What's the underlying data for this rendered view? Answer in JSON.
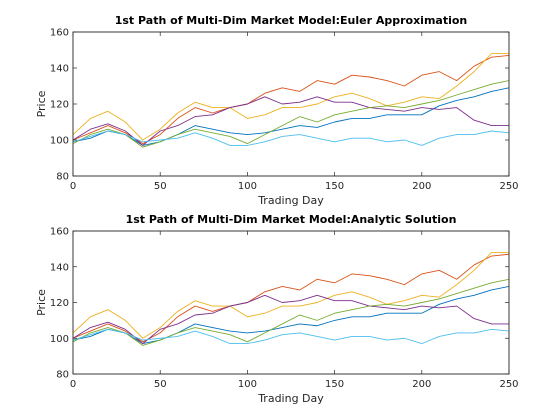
{
  "chart_data": [
    {
      "type": "line",
      "title": "1st Path of Multi-Dim Market Model:Euler Approximation",
      "xlabel": "Trading Day",
      "ylabel": "Price",
      "xlim": [
        0,
        250
      ],
      "ylim": [
        80,
        160
      ],
      "xticks": [
        "0",
        "50",
        "100",
        "150",
        "200",
        "250"
      ],
      "yticks": [
        "80",
        "100",
        "120",
        "140",
        "160"
      ],
      "grid": false,
      "series": [
        {
          "color": "#0072BD",
          "x": [
            0,
            10,
            20,
            30,
            40,
            50,
            60,
            70,
            80,
            90,
            100,
            110,
            120,
            130,
            140,
            150,
            160,
            170,
            180,
            190,
            200,
            210,
            220,
            230,
            240,
            250
          ],
          "values": [
            99,
            101,
            105,
            103,
            97,
            99,
            103,
            108,
            106,
            104,
            103,
            104,
            106,
            108,
            107,
            110,
            112,
            112,
            114,
            114,
            114,
            119,
            122,
            124,
            127,
            129
          ]
        },
        {
          "color": "#D95319",
          "x": [
            0,
            10,
            20,
            30,
            40,
            50,
            60,
            70,
            80,
            90,
            100,
            110,
            120,
            130,
            140,
            150,
            160,
            170,
            180,
            190,
            200,
            210,
            220,
            230,
            240,
            250
          ],
          "values": [
            100,
            104,
            108,
            104,
            98,
            103,
            112,
            118,
            115,
            118,
            120,
            126,
            129,
            127,
            133,
            131,
            136,
            135,
            133,
            130,
            136,
            138,
            133,
            141,
            146,
            147
          ]
        },
        {
          "color": "#EDB120",
          "x": [
            0,
            10,
            20,
            30,
            40,
            50,
            60,
            70,
            80,
            90,
            100,
            110,
            120,
            130,
            140,
            150,
            160,
            170,
            180,
            190,
            200,
            210,
            220,
            230,
            240,
            250
          ],
          "values": [
            103,
            112,
            116,
            110,
            100,
            106,
            115,
            121,
            118,
            118,
            112,
            114,
            118,
            118,
            120,
            124,
            126,
            123,
            119,
            121,
            124,
            123,
            130,
            138,
            148,
            148
          ]
        },
        {
          "color": "#7E2F8E",
          "x": [
            0,
            10,
            20,
            30,
            40,
            50,
            60,
            70,
            80,
            90,
            100,
            110,
            120,
            130,
            140,
            150,
            160,
            170,
            180,
            190,
            200,
            210,
            220,
            230,
            240,
            250
          ],
          "values": [
            100,
            106,
            109,
            105,
            97,
            105,
            108,
            113,
            114,
            118,
            120,
            124,
            120,
            121,
            124,
            121,
            121,
            118,
            117,
            116,
            118,
            117,
            118,
            111,
            108,
            108
          ]
        },
        {
          "color": "#77AC30",
          "x": [
            0,
            10,
            20,
            30,
            40,
            50,
            60,
            70,
            80,
            90,
            100,
            110,
            120,
            130,
            140,
            150,
            160,
            170,
            180,
            190,
            200,
            210,
            220,
            230,
            240,
            250
          ],
          "values": [
            98,
            103,
            106,
            103,
            96,
            99,
            103,
            106,
            104,
            102,
            98,
            103,
            108,
            113,
            110,
            114,
            116,
            118,
            119,
            118,
            120,
            122,
            125,
            128,
            131,
            133
          ]
        },
        {
          "color": "#4DBEEE",
          "x": [
            0,
            10,
            20,
            30,
            40,
            50,
            60,
            70,
            80,
            90,
            100,
            110,
            120,
            130,
            140,
            150,
            160,
            170,
            180,
            190,
            200,
            210,
            220,
            230,
            240,
            250
          ],
          "values": [
            99,
            102,
            105,
            103,
            99,
            100,
            101,
            104,
            101,
            97,
            97,
            99,
            102,
            103,
            101,
            99,
            101,
            101,
            99,
            100,
            97,
            101,
            103,
            103,
            105,
            104
          ]
        }
      ]
    },
    {
      "type": "line",
      "title": "1st Path of Multi-Dim Market Model:Analytic Solution",
      "xlabel": "Trading Day",
      "ylabel": "Price",
      "xlim": [
        0,
        250
      ],
      "ylim": [
        80,
        160
      ],
      "xticks": [
        "0",
        "50",
        "100",
        "150",
        "200",
        "250"
      ],
      "yticks": [
        "80",
        "100",
        "120",
        "140",
        "160"
      ],
      "grid": false,
      "series": [
        {
          "color": "#0072BD",
          "x": [
            0,
            10,
            20,
            30,
            40,
            50,
            60,
            70,
            80,
            90,
            100,
            110,
            120,
            130,
            140,
            150,
            160,
            170,
            180,
            190,
            200,
            210,
            220,
            230,
            240,
            250
          ],
          "values": [
            99,
            101,
            105,
            103,
            97,
            99,
            103,
            108,
            106,
            104,
            103,
            104,
            106,
            108,
            107,
            110,
            112,
            112,
            114,
            114,
            114,
            119,
            122,
            124,
            127,
            129
          ]
        },
        {
          "color": "#D95319",
          "x": [
            0,
            10,
            20,
            30,
            40,
            50,
            60,
            70,
            80,
            90,
            100,
            110,
            120,
            130,
            140,
            150,
            160,
            170,
            180,
            190,
            200,
            210,
            220,
            230,
            240,
            250
          ],
          "values": [
            100,
            104,
            108,
            104,
            98,
            103,
            112,
            118,
            115,
            118,
            120,
            126,
            129,
            127,
            133,
            131,
            136,
            135,
            133,
            130,
            136,
            138,
            133,
            141,
            146,
            147
          ]
        },
        {
          "color": "#EDB120",
          "x": [
            0,
            10,
            20,
            30,
            40,
            50,
            60,
            70,
            80,
            90,
            100,
            110,
            120,
            130,
            140,
            150,
            160,
            170,
            180,
            190,
            200,
            210,
            220,
            230,
            240,
            250
          ],
          "values": [
            103,
            112,
            116,
            110,
            100,
            106,
            115,
            121,
            118,
            118,
            112,
            114,
            118,
            118,
            120,
            124,
            126,
            123,
            119,
            121,
            124,
            123,
            130,
            138,
            148,
            148
          ]
        },
        {
          "color": "#7E2F8E",
          "x": [
            0,
            10,
            20,
            30,
            40,
            50,
            60,
            70,
            80,
            90,
            100,
            110,
            120,
            130,
            140,
            150,
            160,
            170,
            180,
            190,
            200,
            210,
            220,
            230,
            240,
            250
          ],
          "values": [
            100,
            106,
            109,
            105,
            97,
            105,
            108,
            113,
            114,
            118,
            120,
            124,
            120,
            121,
            124,
            121,
            121,
            118,
            117,
            116,
            118,
            117,
            118,
            111,
            108,
            108
          ]
        },
        {
          "color": "#77AC30",
          "x": [
            0,
            10,
            20,
            30,
            40,
            50,
            60,
            70,
            80,
            90,
            100,
            110,
            120,
            130,
            140,
            150,
            160,
            170,
            180,
            190,
            200,
            210,
            220,
            230,
            240,
            250
          ],
          "values": [
            98,
            103,
            106,
            103,
            96,
            99,
            103,
            106,
            104,
            102,
            98,
            103,
            108,
            113,
            110,
            114,
            116,
            118,
            119,
            118,
            120,
            122,
            125,
            128,
            131,
            133
          ]
        },
        {
          "color": "#4DBEEE",
          "x": [
            0,
            10,
            20,
            30,
            40,
            50,
            60,
            70,
            80,
            90,
            100,
            110,
            120,
            130,
            140,
            150,
            160,
            170,
            180,
            190,
            200,
            210,
            220,
            230,
            240,
            250
          ],
          "values": [
            99,
            102,
            105,
            103,
            99,
            100,
            101,
            104,
            101,
            97,
            97,
            99,
            102,
            103,
            101,
            99,
            101,
            101,
            99,
            100,
            97,
            101,
            103,
            103,
            105,
            104
          ]
        }
      ]
    }
  ]
}
